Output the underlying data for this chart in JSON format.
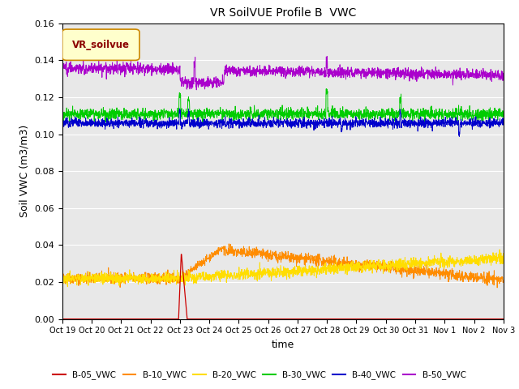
{
  "title": "VR SoilVUE Profile B  VWC",
  "xlabel": "time",
  "ylabel": "Soil VWC (m3/m3)",
  "ylim": [
    0.0,
    0.16
  ],
  "background_color": "#e8e8e8",
  "legend_label": "VR_soilvue",
  "legend_text_color": "#8b0000",
  "legend_box_facecolor": "#ffffcc",
  "legend_box_edgecolor": "#cc8800",
  "series": {
    "B-05_VWC": {
      "color": "#cc0000"
    },
    "B-10_VWC": {
      "color": "#ff8c00"
    },
    "B-20_VWC": {
      "color": "#ffdd00"
    },
    "B-30_VWC": {
      "color": "#00cc00"
    },
    "B-40_VWC": {
      "color": "#0000cc"
    },
    "B-50_VWC": {
      "color": "#aa00cc"
    }
  },
  "x_tick_labels": [
    "Oct 19",
    "Oct 20",
    "Oct 21",
    "Oct 22",
    "Oct 23",
    "Oct 24",
    "Oct 25",
    "Oct 26",
    "Oct 27",
    "Oct 28",
    "Oct 29",
    "Oct 30",
    "Oct 31",
    "Nov 1",
    "Nov 2",
    "Nov 3"
  ],
  "n_points": 2000,
  "total_days": 15
}
